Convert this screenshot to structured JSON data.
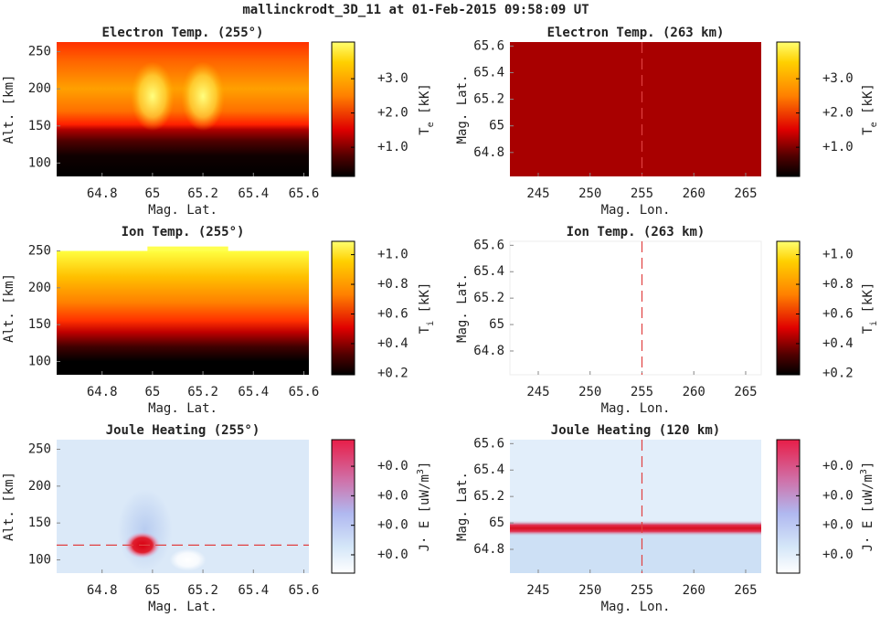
{
  "title": "mallinckrodt_3D_11 at 01-Feb-2015 09:58:09 UT",
  "chart_data": [
    {
      "type": "heatmap",
      "title": "Electron Temp. (255°)",
      "xlabel": "Mag. Lat.",
      "ylabel": "Alt. [km]",
      "xlim": [
        64.62,
        65.62
      ],
      "xticks": [
        64.8,
        65,
        65.2,
        65.4,
        65.6
      ],
      "ylim": [
        82,
        263
      ],
      "yticks": [
        100,
        150,
        200,
        250
      ],
      "colormap": "hot",
      "clim": [
        0.15,
        4.07
      ],
      "cticks": [
        {
          "value": 1,
          "label": "+1.0"
        },
        {
          "value": 2,
          "label": "+2.0"
        },
        {
          "value": 3,
          "label": "+3.0"
        }
      ],
      "colorbar_label": {
        "main": "T",
        "sub": "e",
        "rest": " [kK]"
      }
    },
    {
      "type": "heatmap",
      "title": "Electron Temp. (263 km)",
      "xlabel": "Mag. Lon.",
      "ylabel": "Mag. Lat.",
      "xlim": [
        242.27,
        266.5
      ],
      "xticks": [
        245,
        250,
        255,
        260,
        265
      ],
      "ylim": [
        64.62,
        65.63
      ],
      "yticks": [
        64.8,
        65,
        65.2,
        65.4,
        65.6
      ],
      "colormap": "hot",
      "clim": [
        0.15,
        4.07
      ],
      "cticks": [
        {
          "value": 1,
          "label": "+1.0"
        },
        {
          "value": 2,
          "label": "+2.0"
        },
        {
          "value": 3,
          "label": "+3.0"
        }
      ],
      "colorbar_label": {
        "main": "T",
        "sub": "e",
        "rest": " [kK]"
      },
      "vline": 255,
      "line_color": "#e04040"
    },
    {
      "type": "heatmap",
      "title": "Ion Temp. (255°)",
      "xlabel": "Mag. Lat.",
      "ylabel": "Alt. [km]",
      "xlim": [
        64.62,
        65.62
      ],
      "xticks": [
        64.8,
        65,
        65.2,
        65.4,
        65.6
      ],
      "ylim": [
        82,
        263
      ],
      "yticks": [
        100,
        150,
        200,
        250
      ],
      "colormap": "hot",
      "clim": [
        0.19,
        1.09
      ],
      "cticks": [
        {
          "value": 0.2,
          "label": "+0.2"
        },
        {
          "value": 0.4,
          "label": "+0.4"
        },
        {
          "value": 0.6,
          "label": "+0.6"
        },
        {
          "value": 0.8,
          "label": "+0.8"
        },
        {
          "value": 1,
          "label": "+1.0"
        }
      ],
      "colorbar_label": {
        "main": "T",
        "sub": "i",
        "rest": " [kK]"
      }
    },
    {
      "type": "heatmap",
      "title": "Ion Temp. (263 km)",
      "xlabel": "Mag. Lon.",
      "ylabel": "Mag. Lat.",
      "xlim": [
        242.27,
        266.5
      ],
      "xticks": [
        245,
        250,
        255,
        260,
        265
      ],
      "ylim": [
        64.62,
        65.63
      ],
      "yticks": [
        64.8,
        65,
        65.2,
        65.4,
        65.6
      ],
      "colormap": "hot",
      "clim": [
        0.19,
        1.09
      ],
      "cticks": [
        {
          "value": 0.2,
          "label": "+0.2"
        },
        {
          "value": 0.4,
          "label": "+0.4"
        },
        {
          "value": 0.6,
          "label": "+0.6"
        },
        {
          "value": 0.8,
          "label": "+0.8"
        },
        {
          "value": 1,
          "label": "+1.0"
        }
      ],
      "colorbar_label": {
        "main": "T",
        "sub": "i",
        "rest": " [kK]"
      },
      "vline": 255,
      "line_color": "#e04040"
    },
    {
      "type": "heatmap",
      "title": "Joule Heating (255°)",
      "xlabel": "Mag. Lat.",
      "ylabel": "Alt. [km]",
      "xlim": [
        64.62,
        65.62
      ],
      "xticks": [
        64.8,
        65,
        65.2,
        65.4,
        65.6
      ],
      "ylim": [
        82,
        263
      ],
      "yticks": [
        100,
        150,
        200,
        250
      ],
      "colormap": "whitered",
      "clim": [
        0.0038,
        0.049
      ],
      "cticks": [
        {
          "value": 0.01,
          "label": "+0.0"
        },
        {
          "value": 0.02,
          "label": "+0.0"
        },
        {
          "value": 0.03,
          "label": "+0.0"
        },
        {
          "value": 0.04,
          "label": "+0.0"
        }
      ],
      "colorbar_label": {
        "main": "J· E [uW/m",
        "sup": "3",
        "rest": "]"
      },
      "hline": 120,
      "line_color": "#e04040"
    },
    {
      "type": "heatmap",
      "title": "Joule Heating (120 km)",
      "xlabel": "Mag. Lon.",
      "ylabel": "Mag. Lat.",
      "xlim": [
        242.27,
        266.5
      ],
      "xticks": [
        245,
        250,
        255,
        260,
        265
      ],
      "ylim": [
        64.62,
        65.63
      ],
      "yticks": [
        64.8,
        65,
        65.2,
        65.4,
        65.6
      ],
      "colormap": "whitered",
      "clim": [
        0.0038,
        0.049
      ],
      "cticks": [
        {
          "value": 0.01,
          "label": "+0.0"
        },
        {
          "value": 0.02,
          "label": "+0.0"
        },
        {
          "value": 0.03,
          "label": "+0.0"
        },
        {
          "value": 0.04,
          "label": "+0.0"
        }
      ],
      "colorbar_label": {
        "main": "J· E [uW/m",
        "sup": "3",
        "rest": "]"
      },
      "vline": 255,
      "line_color": "#e04040"
    }
  ]
}
